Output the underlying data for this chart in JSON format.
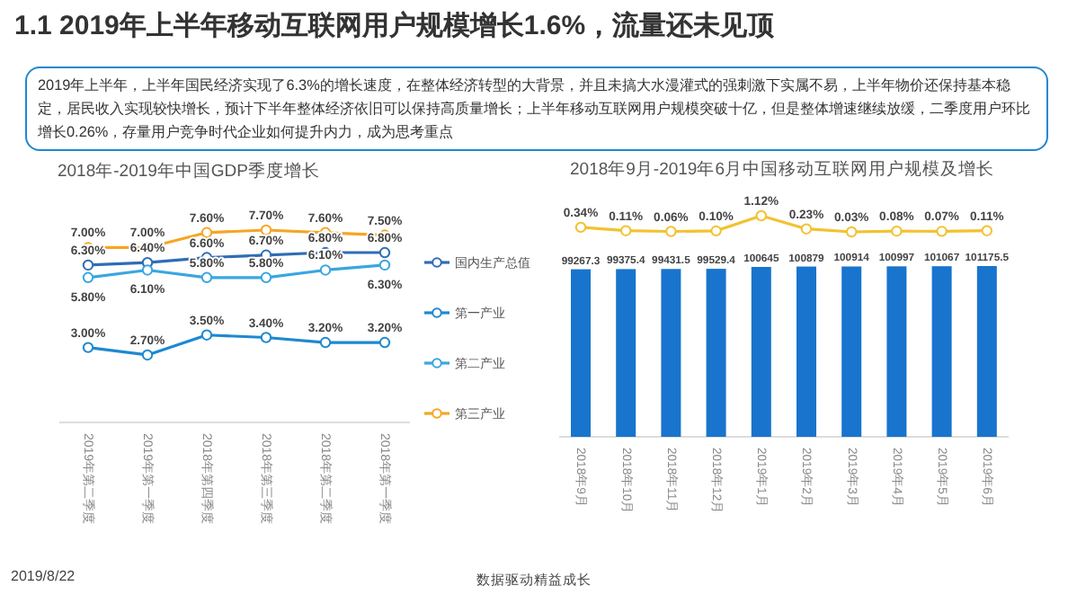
{
  "chart_data": [
    {
      "type": "other",
      "title": "1.1 2019年上半年移动互联网用户规模增长1.6%，流量还未见顶",
      "annotations": [
        "2019年上半年，上半年国民经济实现了6.3%的增长速度，在整体经济转型的大背景，并且未搞大水漫灌式的强刺激下实属不易，上半年物价还保持基本稳定，居民收入实现较快增长，预计下半年整体经济依旧可以保持高质量增长；上半年移动互联网用户规模突破十亿，但是整体增速继续放缓，二季度用户环比增长0.26%，存量用户竞争时代企业如何提升内力，成为思考重点",
        "2019/8/22",
        "数据驱动精益成长"
      ]
    },
    {
      "type": "line",
      "title": "2018年-2019年中国GDP季度增长",
      "categories": [
        "2019年第二季度",
        "2019年第一季度",
        "2018年第四季度",
        "2018年第三季度",
        "2018年第二季度",
        "2018年第一季度"
      ],
      "series": [
        {
          "name": "国内生产总值",
          "color": "#2f6db5",
          "values": [
            6.3,
            6.4,
            6.6,
            6.7,
            6.8,
            6.8
          ],
          "value_labels": [
            "6.30%",
            "6.40%",
            "6.60%",
            "6.70%",
            "6.80%",
            "6.80%"
          ]
        },
        {
          "name": "第一产业",
          "color": "#1e88d0",
          "values": [
            3.0,
            2.7,
            3.5,
            3.4,
            3.2,
            3.2
          ],
          "value_labels": [
            "3.00%",
            "2.70%",
            "3.50%",
            "3.40%",
            "3.20%",
            "3.20%"
          ]
        },
        {
          "name": "第二产业",
          "color": "#3aa6e0",
          "values": [
            5.8,
            6.1,
            5.8,
            5.8,
            6.1,
            6.3
          ],
          "value_labels": [
            "5.80%",
            "6.10%",
            "5.80%",
            "5.80%",
            "6.10%",
            "6.30%"
          ]
        },
        {
          "name": "第三产业",
          "color": "#f5a623",
          "values": [
            7.0,
            7.0,
            7.6,
            7.7,
            7.6,
            7.5
          ],
          "value_labels": [
            "7.00%",
            "7.00%",
            "7.60%",
            "7.70%",
            "7.60%",
            "7.50%"
          ]
        }
      ],
      "legend": "right",
      "marker": "circle"
    },
    {
      "type": "bar",
      "categories": [
        "2018年9月",
        "2018年10月",
        "2018年11月",
        "2018年12月",
        "2019年1月",
        "2019年2月",
        "2019年3月",
        "2019年4月",
        "2019年5月",
        "2019年6月"
      ],
      "series": [
        {
          "color": "#1874cd",
          "values": [
            99267.3,
            99375.4,
            99431.5,
            99529.4,
            100645,
            100879,
            100914,
            100997,
            101067,
            101175.5
          ]
        }
      ],
      "data_labels": true
    },
    {
      "type": "line",
      "title": "2018年9月-2019年6月中国移动互联网用户规模及增长",
      "categories": [
        null,
        null,
        null,
        null,
        null,
        null,
        null,
        null,
        null,
        null
      ],
      "series": [
        {
          "color": "#f2c230",
          "values": [
            0.34,
            0.11,
            0.06,
            0.1,
            1.12,
            0.23,
            0.03,
            0.08,
            0.07,
            0.11
          ],
          "value_labels": [
            "0.34%",
            "0.11%",
            "0.06%",
            "0.10%",
            "1.12%",
            "0.23%",
            "0.03%",
            "0.08%",
            "0.07%",
            "0.11%"
          ]
        }
      ],
      "marker": "circle"
    }
  ]
}
